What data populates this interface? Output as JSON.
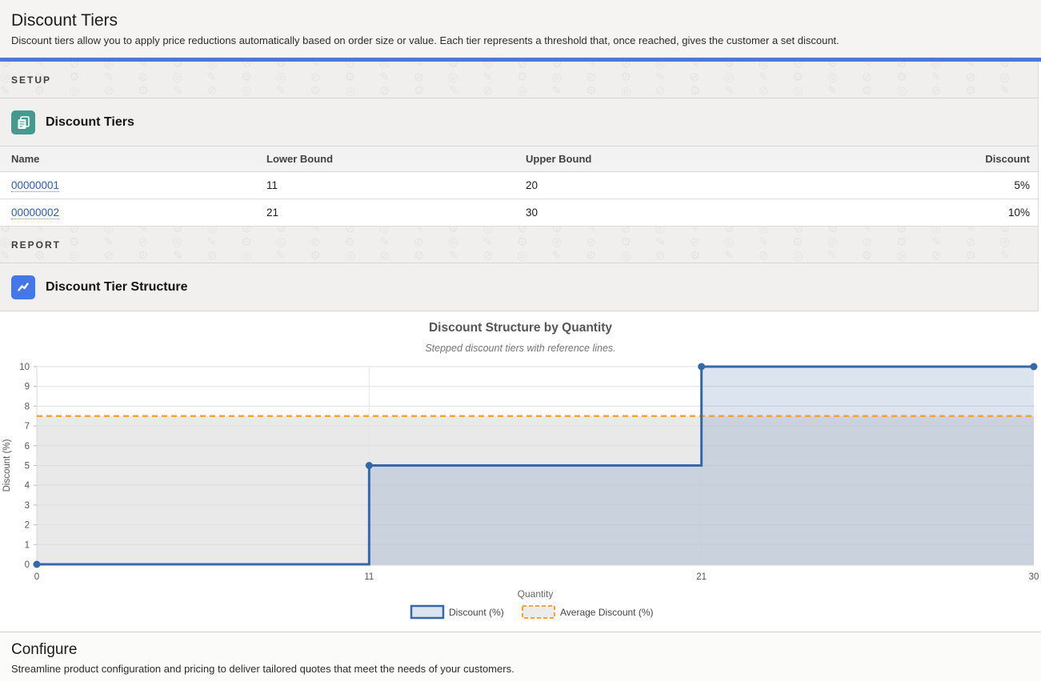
{
  "page": {
    "title": "Discount Tiers",
    "subtitle": "Discount tiers allow you to apply price reductions automatically based on order size or value. Each tier represents a threshold that, once reached, gives the customer a set discount."
  },
  "colors": {
    "accent_bar": "#4c79d4",
    "link": "#2b5caa",
    "setup_tile": "#459a8f",
    "report_tile": "#4478e8"
  },
  "texture": {
    "glyphs": "⚙ ✎ ⊘ ◎ ✎ ⚙ ◎ ⊘ ",
    "repeat": 60
  },
  "sections": {
    "setup": {
      "label": "SETUP",
      "card_title": "Discount Tiers"
    },
    "report": {
      "label": "REPORT",
      "card_title": "Discount Tier Structure"
    }
  },
  "table": {
    "columns": [
      "Name",
      "Lower Bound",
      "Upper Bound",
      "Discount"
    ],
    "rows": [
      {
        "name": "00000001",
        "lower": "11",
        "upper": "20",
        "discount": "5%"
      },
      {
        "name": "00000002",
        "lower": "21",
        "upper": "30",
        "discount": "10%"
      }
    ]
  },
  "chart_data": {
    "type": "area",
    "step": true,
    "title": "Discount Structure by Quantity",
    "subtitle": "Stepped discount tiers with reference lines.",
    "xlabel": "Quantity",
    "ylabel": "Discount (%)",
    "x": [
      0,
      11,
      21,
      30
    ],
    "x_equal_spacing": true,
    "ylim": [
      0,
      10
    ],
    "yticks": [
      0,
      1,
      2,
      3,
      4,
      5,
      6,
      7,
      8,
      9,
      10
    ],
    "grid": true,
    "legend_position": "bottom",
    "series": [
      {
        "name": "Discount (%)",
        "values": [
          0,
          5,
          10,
          10
        ],
        "color": "#3568a8",
        "fill": "rgba(53,104,168,0.18)",
        "style": "step-solid",
        "markers": true
      },
      {
        "name": "Average Discount (%)",
        "values": [
          7.5,
          7.5,
          7.5,
          7.5
        ],
        "color": "#f0a43c",
        "fill": "rgba(0,0,0,0.085)",
        "style": "dashed",
        "markers": false
      }
    ]
  },
  "footer": {
    "title": "Configure",
    "subtitle": "Streamline product configuration and pricing to deliver tailored quotes that meet the needs of your customers."
  }
}
